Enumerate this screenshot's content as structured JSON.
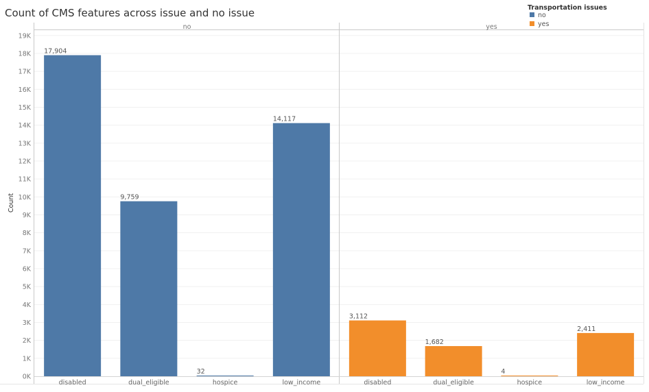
{
  "chart_data": {
    "type": "bar",
    "title": "Count of CMS features across issue and no issue",
    "ylabel": "Count",
    "xlabel": "",
    "ylim": [
      0,
      19300
    ],
    "yticks": [
      0,
      1000,
      2000,
      3000,
      4000,
      5000,
      6000,
      7000,
      8000,
      9000,
      10000,
      11000,
      12000,
      13000,
      14000,
      15000,
      16000,
      17000,
      18000,
      19000
    ],
    "ytick_labels": [
      "0K",
      "1K",
      "2K",
      "3K",
      "4K",
      "5K",
      "6K",
      "7K",
      "8K",
      "9K",
      "10K",
      "11K",
      "12K",
      "13K",
      "14K",
      "15K",
      "16K",
      "17K",
      "18K",
      "19K"
    ],
    "categories": [
      "disabled",
      "dual_eligible",
      "hospice",
      "low_income"
    ],
    "legend": {
      "title": "Transportation issues",
      "position": "top-right",
      "entries": [
        {
          "label": "no",
          "color": "#4e79a7"
        },
        {
          "label": "yes",
          "color": "#f28e2b"
        }
      ]
    },
    "grid": true,
    "panels": [
      {
        "header": "no",
        "color": "#4e79a7",
        "values": [
          17904,
          9759,
          32,
          14117
        ],
        "data_labels": [
          "17,904",
          "9,759",
          "32",
          "14,117"
        ]
      },
      {
        "header": "yes",
        "color": "#f28e2b",
        "values": [
          3112,
          1682,
          4,
          2411
        ],
        "data_labels": [
          "3,112",
          "1,682",
          "4",
          "2,411"
        ]
      }
    ]
  }
}
